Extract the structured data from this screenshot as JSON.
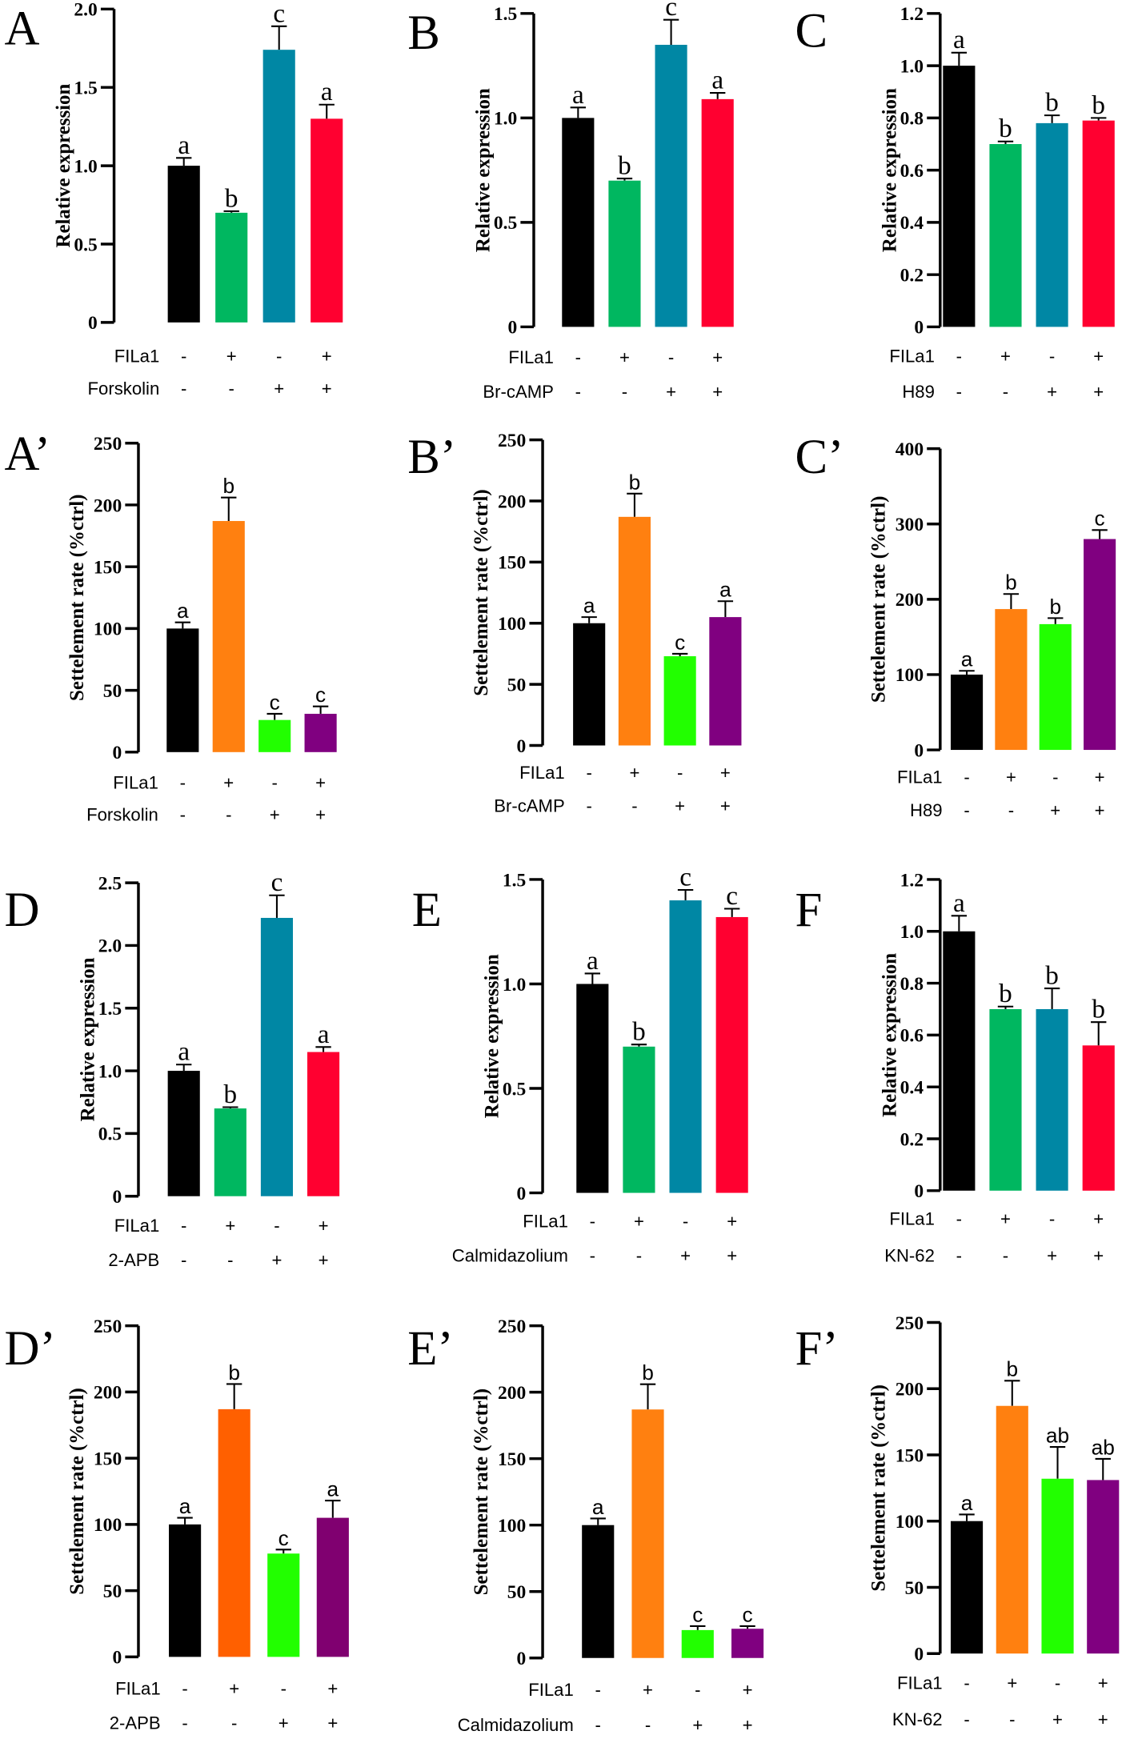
{
  "chart_data": [
    {
      "panel": "A",
      "type": "bar",
      "ylabel": "Relative expression",
      "ylim": [
        0,
        2.0
      ],
      "yticks": [
        "0",
        "0.5",
        "1.0",
        "1.5",
        "2.0"
      ],
      "ytick_values": [
        0,
        0.5,
        1.0,
        1.5,
        2.0
      ],
      "values": [
        1.0,
        0.7,
        1.74,
        1.3
      ],
      "errors": [
        0.05,
        0.01,
        0.15,
        0.09
      ],
      "letters": [
        "a",
        "b",
        "c",
        "a"
      ],
      "colors": [
        "#000000",
        "#00b760",
        "#0087a4",
        "#ff0030"
      ],
      "factors": [
        {
          "name": "FILa1",
          "signs": [
            "-",
            "+",
            "-",
            "+"
          ]
        },
        {
          "name": "Forskolin",
          "signs": [
            "-",
            "-",
            "+",
            "+"
          ]
        }
      ]
    },
    {
      "panel": "B",
      "type": "bar",
      "ylabel": "Relative expression",
      "ylim": [
        0,
        1.5
      ],
      "yticks": [
        "0",
        "0.5",
        "1.0",
        "1.5"
      ],
      "ytick_values": [
        0,
        0.5,
        1.0,
        1.5
      ],
      "values": [
        1.0,
        0.7,
        1.35,
        1.09
      ],
      "errors": [
        0.05,
        0.01,
        0.12,
        0.03
      ],
      "letters": [
        "a",
        "b",
        "c",
        "a"
      ],
      "colors": [
        "#000000",
        "#00b760",
        "#0087a4",
        "#ff0030"
      ],
      "factors": [
        {
          "name": "FILa1",
          "signs": [
            "-",
            "+",
            "-",
            "+"
          ]
        },
        {
          "name": "Br-cAMP",
          "signs": [
            "-",
            "-",
            "+",
            "+"
          ]
        }
      ]
    },
    {
      "panel": "C",
      "type": "bar",
      "ylabel": "Relative expression",
      "ylim": [
        0,
        1.2
      ],
      "yticks": [
        "0",
        "0.2",
        "0.4",
        "0.6",
        "0.8",
        "1.0",
        "1.2"
      ],
      "ytick_values": [
        0,
        0.2,
        0.4,
        0.6,
        0.8,
        1.0,
        1.2
      ],
      "values": [
        1.0,
        0.7,
        0.78,
        0.79
      ],
      "errors": [
        0.05,
        0.01,
        0.03,
        0.01
      ],
      "letters": [
        "a",
        "b",
        "b",
        "b"
      ],
      "colors": [
        "#000000",
        "#00b760",
        "#0087a4",
        "#ff0030"
      ],
      "factors": [
        {
          "name": "FILa1",
          "signs": [
            "-",
            "+",
            "-",
            "+"
          ]
        },
        {
          "name": "H89",
          "signs": [
            "-",
            "-",
            "+",
            "+"
          ]
        }
      ]
    },
    {
      "panel": "A’",
      "type": "bar",
      "ylabel": "Settelement rate (%ctrl)",
      "ylim": [
        0,
        250
      ],
      "yticks": [
        "0",
        "50",
        "100",
        "150",
        "200",
        "250"
      ],
      "ytick_values": [
        0,
        50,
        100,
        150,
        200,
        250
      ],
      "values": [
        100,
        187,
        26,
        31
      ],
      "errors": [
        5,
        19,
        5,
        6
      ],
      "letters": [
        "a",
        "b",
        "c",
        "c"
      ],
      "colors": [
        "#000000",
        "#ff8010",
        "#22ff00",
        "#800080"
      ],
      "factors": [
        {
          "name": "FILa1",
          "signs": [
            "-",
            "+",
            "-",
            "+"
          ]
        },
        {
          "name": "Forskolin",
          "signs": [
            "-",
            "-",
            "+",
            "+"
          ]
        }
      ]
    },
    {
      "panel": "B’",
      "type": "bar",
      "ylabel": "Settelement rate (%ctrl)",
      "ylim": [
        0,
        250
      ],
      "yticks": [
        "0",
        "50",
        "100",
        "150",
        "200",
        "250"
      ],
      "ytick_values": [
        0,
        50,
        100,
        150,
        200,
        250
      ],
      "values": [
        100,
        187,
        73,
        105
      ],
      "errors": [
        5,
        19,
        2,
        13
      ],
      "letters": [
        "a",
        "b",
        "c",
        "a"
      ],
      "colors": [
        "#000000",
        "#ff8010",
        "#22ff00",
        "#800080"
      ],
      "factors": [
        {
          "name": "FILa1",
          "signs": [
            "-",
            "+",
            "-",
            "+"
          ]
        },
        {
          "name": "Br-cAMP",
          "signs": [
            "-",
            "-",
            "+",
            "+"
          ]
        }
      ]
    },
    {
      "panel": "C’",
      "type": "bar",
      "ylabel": "Settelement rate (%ctrl)",
      "ylim": [
        0,
        400
      ],
      "yticks": [
        "0",
        "100",
        "200",
        "300",
        "400"
      ],
      "ytick_values": [
        0,
        100,
        200,
        300,
        400
      ],
      "values": [
        100,
        187,
        167,
        280
      ],
      "errors": [
        5,
        20,
        8,
        12
      ],
      "letters": [
        "a",
        "b",
        "b",
        "c"
      ],
      "colors": [
        "#000000",
        "#ff8010",
        "#22ff00",
        "#800080"
      ],
      "factors": [
        {
          "name": "FILa1",
          "signs": [
            "-",
            "+",
            "-",
            "+"
          ]
        },
        {
          "name": "H89",
          "signs": [
            "-",
            "-",
            "+",
            "+"
          ]
        }
      ]
    },
    {
      "panel": "D",
      "type": "bar",
      "ylabel": "Relative expression",
      "ylim": [
        0,
        2.5
      ],
      "yticks": [
        "0",
        "0.5",
        "1.0",
        "1.5",
        "2.0",
        "2.5"
      ],
      "ytick_values": [
        0,
        0.5,
        1.0,
        1.5,
        2.0,
        2.5
      ],
      "values": [
        1.0,
        0.7,
        2.22,
        1.15
      ],
      "errors": [
        0.05,
        0.01,
        0.18,
        0.04
      ],
      "letters": [
        "a",
        "b",
        "c",
        "a"
      ],
      "colors": [
        "#000000",
        "#00b760",
        "#0087a4",
        "#ff0030"
      ],
      "factors": [
        {
          "name": "FILa1",
          "signs": [
            "-",
            "+",
            "-",
            "+"
          ]
        },
        {
          "name": "2-APB",
          "signs": [
            "-",
            "-",
            "+",
            "+"
          ]
        }
      ]
    },
    {
      "panel": "E",
      "type": "bar",
      "ylabel": "Relative expression",
      "ylim": [
        0,
        1.5
      ],
      "yticks": [
        "0",
        "0.5",
        "1.0",
        "1.5"
      ],
      "ytick_values": [
        0,
        0.5,
        1.0,
        1.5
      ],
      "values": [
        1.0,
        0.7,
        1.4,
        1.32
      ],
      "errors": [
        0.05,
        0.01,
        0.05,
        0.04
      ],
      "letters": [
        "a",
        "b",
        "c",
        "c"
      ],
      "colors": [
        "#000000",
        "#00b760",
        "#0087a4",
        "#ff0030"
      ],
      "factors": [
        {
          "name": "FILa1",
          "signs": [
            "-",
            "+",
            "-",
            "+"
          ]
        },
        {
          "name": "Calmidazolium",
          "signs": [
            "-",
            "-",
            "+",
            "+"
          ]
        }
      ]
    },
    {
      "panel": "F",
      "type": "bar",
      "ylabel": "Relative expression",
      "ylim": [
        0,
        1.2
      ],
      "yticks": [
        "0",
        "0.2",
        "0.4",
        "0.6",
        "0.8",
        "1.0",
        "1.2"
      ],
      "ytick_values": [
        0,
        0.2,
        0.4,
        0.6,
        0.8,
        1.0,
        1.2
      ],
      "values": [
        1.0,
        0.7,
        0.7,
        0.56
      ],
      "errors": [
        0.06,
        0.01,
        0.08,
        0.09
      ],
      "letters": [
        "a",
        "b",
        "b",
        "b"
      ],
      "colors": [
        "#000000",
        "#00b760",
        "#0087a4",
        "#ff0030"
      ],
      "factors": [
        {
          "name": "FILa1",
          "signs": [
            "-",
            "+",
            "-",
            "+"
          ]
        },
        {
          "name": "KN-62",
          "signs": [
            "-",
            "-",
            "+",
            "+"
          ]
        }
      ]
    },
    {
      "panel": "D’",
      "type": "bar",
      "ylabel": "Settelement rate (%ctrl)",
      "ylim": [
        0,
        250
      ],
      "yticks": [
        "0",
        "50",
        "100",
        "150",
        "200",
        "250"
      ],
      "ytick_values": [
        0,
        50,
        100,
        150,
        200,
        250
      ],
      "values": [
        100,
        187,
        78,
        105
      ],
      "errors": [
        5,
        19,
        3,
        13
      ],
      "letters": [
        "a",
        "b",
        "c",
        "a"
      ],
      "colors": [
        "#000000",
        "#ff6000",
        "#22ff00",
        "#800070"
      ],
      "factors": [
        {
          "name": "FILa1",
          "signs": [
            "-",
            "+",
            "-",
            "+"
          ]
        },
        {
          "name": "2-APB",
          "signs": [
            "-",
            "-",
            "+",
            "+"
          ]
        }
      ]
    },
    {
      "panel": "E’",
      "type": "bar",
      "ylabel": "Settelement rate (%ctrl)",
      "ylim": [
        0,
        250
      ],
      "yticks": [
        "0",
        "50",
        "100",
        "150",
        "200",
        "250"
      ],
      "ytick_values": [
        0,
        50,
        100,
        150,
        200,
        250
      ],
      "values": [
        100,
        187,
        21,
        22
      ],
      "errors": [
        5,
        19,
        3,
        2
      ],
      "letters": [
        "a",
        "b",
        "c",
        "c"
      ],
      "colors": [
        "#000000",
        "#ff8010",
        "#22ff00",
        "#800080"
      ],
      "factors": [
        {
          "name": "FILa1",
          "signs": [
            "-",
            "+",
            "-",
            "+"
          ]
        },
        {
          "name": "Calmidazolium",
          "signs": [
            "-",
            "-",
            "+",
            "+"
          ]
        }
      ]
    },
    {
      "panel": "F’",
      "type": "bar",
      "ylabel": "Settelement rate (%ctrl)",
      "ylim": [
        0,
        250
      ],
      "yticks": [
        "0",
        "50",
        "100",
        "150",
        "200",
        "250"
      ],
      "ytick_values": [
        0,
        50,
        100,
        150,
        200,
        250
      ],
      "values": [
        100,
        187,
        132,
        131
      ],
      "errors": [
        5,
        19,
        24,
        16
      ],
      "letters": [
        "a",
        "b",
        "ab",
        "ab"
      ],
      "colors": [
        "#000000",
        "#ff8010",
        "#22ff00",
        "#800080"
      ],
      "factors": [
        {
          "name": "FILa1",
          "signs": [
            "-",
            "+",
            "-",
            "+"
          ]
        },
        {
          "name": "KN-62",
          "signs": [
            "-",
            "-",
            "+",
            "+"
          ]
        }
      ]
    }
  ]
}
